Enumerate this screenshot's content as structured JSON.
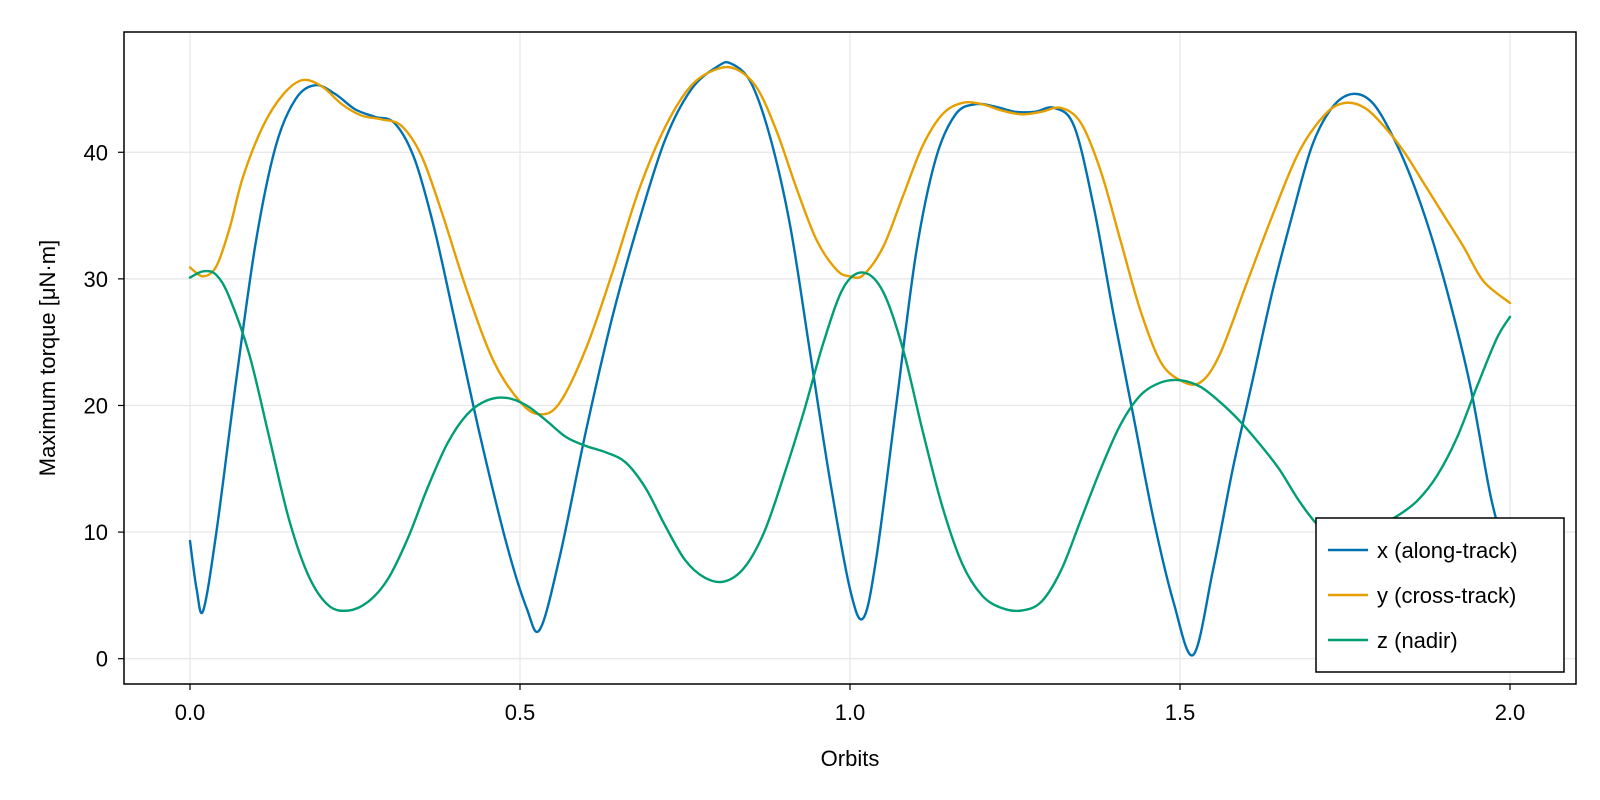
{
  "chart_data": {
    "type": "line",
    "title": "",
    "xlabel": "Orbits",
    "ylabel": "Maximum torque [μN·m]",
    "xlim": [
      -0.1,
      2.1
    ],
    "ylim": [
      -2,
      49.5
    ],
    "xticks": [
      0.0,
      0.5,
      1.0,
      1.5,
      2.0
    ],
    "xtick_labels": [
      "0.0",
      "0.5",
      "1.0",
      "1.5",
      "2.0"
    ],
    "yticks": [
      0,
      10,
      20,
      30,
      40
    ],
    "ytick_labels": [
      "0",
      "10",
      "20",
      "30",
      "40"
    ],
    "grid": true,
    "legend_position": "bottom-right",
    "series": [
      {
        "name": "x (along-track)",
        "color": "#0072B2",
        "points": [
          [
            0.0,
            9.3
          ],
          [
            0.01,
            5.5
          ],
          [
            0.02,
            3.8
          ],
          [
            0.04,
            10
          ],
          [
            0.07,
            22
          ],
          [
            0.1,
            33
          ],
          [
            0.13,
            40.5
          ],
          [
            0.16,
            44.2
          ],
          [
            0.19,
            45.3
          ],
          [
            0.22,
            44.6
          ],
          [
            0.25,
            43.4
          ],
          [
            0.28,
            42.8
          ],
          [
            0.31,
            42.3
          ],
          [
            0.34,
            39.5
          ],
          [
            0.37,
            34
          ],
          [
            0.4,
            27
          ],
          [
            0.44,
            17.5
          ],
          [
            0.48,
            9
          ],
          [
            0.51,
            4
          ],
          [
            0.53,
            2.3
          ],
          [
            0.56,
            8
          ],
          [
            0.6,
            18
          ],
          [
            0.64,
            27
          ],
          [
            0.68,
            34.5
          ],
          [
            0.72,
            41
          ],
          [
            0.76,
            45
          ],
          [
            0.8,
            46.8
          ],
          [
            0.82,
            47
          ],
          [
            0.85,
            45.5
          ],
          [
            0.88,
            41
          ],
          [
            0.91,
            34
          ],
          [
            0.94,
            24
          ],
          [
            0.97,
            14
          ],
          [
            1.0,
            5.5
          ],
          [
            1.02,
            3.2
          ],
          [
            1.04,
            8
          ],
          [
            1.07,
            20
          ],
          [
            1.1,
            32
          ],
          [
            1.13,
            39.5
          ],
          [
            1.16,
            43
          ],
          [
            1.19,
            43.8
          ],
          [
            1.22,
            43.6
          ],
          [
            1.25,
            43.2
          ],
          [
            1.28,
            43.2
          ],
          [
            1.31,
            43.5
          ],
          [
            1.34,
            42
          ],
          [
            1.37,
            35.5
          ],
          [
            1.4,
            27
          ],
          [
            1.43,
            19
          ],
          [
            1.46,
            11
          ],
          [
            1.49,
            4.5
          ],
          [
            1.52,
            0.3
          ],
          [
            1.55,
            7
          ],
          [
            1.58,
            15
          ],
          [
            1.61,
            22
          ],
          [
            1.64,
            29
          ],
          [
            1.67,
            35
          ],
          [
            1.7,
            40.5
          ],
          [
            1.73,
            43.5
          ],
          [
            1.76,
            44.6
          ],
          [
            1.79,
            44
          ],
          [
            1.82,
            41.5
          ],
          [
            1.85,
            38
          ],
          [
            1.88,
            33.5
          ],
          [
            1.91,
            28
          ],
          [
            1.94,
            21.5
          ],
          [
            1.97,
            13
          ],
          [
            1.99,
            9
          ]
        ]
      },
      {
        "name": "y (cross-track)",
        "color": "#E69F00",
        "points": [
          [
            0.0,
            30.9
          ],
          [
            0.02,
            30.2
          ],
          [
            0.04,
            31
          ],
          [
            0.06,
            34
          ],
          [
            0.08,
            38
          ],
          [
            0.11,
            42
          ],
          [
            0.14,
            44.5
          ],
          [
            0.17,
            45.7
          ],
          [
            0.2,
            45.2
          ],
          [
            0.23,
            43.8
          ],
          [
            0.26,
            42.9
          ],
          [
            0.29,
            42.6
          ],
          [
            0.32,
            42.1
          ],
          [
            0.35,
            39.8
          ],
          [
            0.38,
            35.5
          ],
          [
            0.42,
            29
          ],
          [
            0.46,
            23.5
          ],
          [
            0.5,
            20.3
          ],
          [
            0.53,
            19.3
          ],
          [
            0.56,
            20.2
          ],
          [
            0.6,
            24.5
          ],
          [
            0.64,
            30.5
          ],
          [
            0.68,
            37
          ],
          [
            0.72,
            42
          ],
          [
            0.76,
            45.3
          ],
          [
            0.8,
            46.6
          ],
          [
            0.83,
            46.5
          ],
          [
            0.86,
            45
          ],
          [
            0.89,
            41.5
          ],
          [
            0.92,
            37
          ],
          [
            0.95,
            33
          ],
          [
            0.98,
            30.7
          ],
          [
            1.0,
            30.2
          ],
          [
            1.02,
            30.3
          ],
          [
            1.05,
            32.5
          ],
          [
            1.08,
            36.5
          ],
          [
            1.11,
            40.5
          ],
          [
            1.14,
            43
          ],
          [
            1.17,
            43.9
          ],
          [
            1.2,
            43.8
          ],
          [
            1.23,
            43.3
          ],
          [
            1.26,
            43
          ],
          [
            1.29,
            43.2
          ],
          [
            1.32,
            43.5
          ],
          [
            1.35,
            42.3
          ],
          [
            1.38,
            38.5
          ],
          [
            1.41,
            33
          ],
          [
            1.44,
            27.5
          ],
          [
            1.47,
            23.5
          ],
          [
            1.5,
            22
          ],
          [
            1.53,
            21.8
          ],
          [
            1.56,
            24
          ],
          [
            1.6,
            29.5
          ],
          [
            1.64,
            35
          ],
          [
            1.68,
            40
          ],
          [
            1.72,
            43
          ],
          [
            1.75,
            43.9
          ],
          [
            1.78,
            43.5
          ],
          [
            1.81,
            42
          ],
          [
            1.84,
            40
          ],
          [
            1.87,
            37.5
          ],
          [
            1.9,
            35
          ],
          [
            1.93,
            32.5
          ],
          [
            1.96,
            29.8
          ],
          [
            2.0,
            28.1
          ]
        ]
      },
      {
        "name": "z (nadir)",
        "color": "#009E73",
        "points": [
          [
            0.0,
            30.1
          ],
          [
            0.02,
            30.6
          ],
          [
            0.04,
            30.3
          ],
          [
            0.06,
            28.5
          ],
          [
            0.09,
            24
          ],
          [
            0.12,
            17.5
          ],
          [
            0.15,
            11
          ],
          [
            0.18,
            6.5
          ],
          [
            0.21,
            4.2
          ],
          [
            0.24,
            3.8
          ],
          [
            0.27,
            4.5
          ],
          [
            0.3,
            6.3
          ],
          [
            0.33,
            9.5
          ],
          [
            0.36,
            13.5
          ],
          [
            0.39,
            17
          ],
          [
            0.42,
            19.3
          ],
          [
            0.45,
            20.4
          ],
          [
            0.48,
            20.6
          ],
          [
            0.51,
            20
          ],
          [
            0.54,
            18.8
          ],
          [
            0.57,
            17.5
          ],
          [
            0.6,
            16.8
          ],
          [
            0.63,
            16.3
          ],
          [
            0.66,
            15.5
          ],
          [
            0.69,
            13.5
          ],
          [
            0.72,
            10.5
          ],
          [
            0.75,
            7.8
          ],
          [
            0.78,
            6.4
          ],
          [
            0.81,
            6.1
          ],
          [
            0.84,
            7.2
          ],
          [
            0.87,
            10
          ],
          [
            0.9,
            14.5
          ],
          [
            0.93,
            19.5
          ],
          [
            0.96,
            25
          ],
          [
            0.99,
            29.3
          ],
          [
            1.02,
            30.5
          ],
          [
            1.05,
            29
          ],
          [
            1.08,
            24.5
          ],
          [
            1.11,
            18
          ],
          [
            1.14,
            12
          ],
          [
            1.17,
            7.5
          ],
          [
            1.2,
            5
          ],
          [
            1.23,
            4
          ],
          [
            1.26,
            3.8
          ],
          [
            1.29,
            4.5
          ],
          [
            1.32,
            7
          ],
          [
            1.35,
            11
          ],
          [
            1.38,
            15
          ],
          [
            1.41,
            18.5
          ],
          [
            1.44,
            20.8
          ],
          [
            1.47,
            21.8
          ],
          [
            1.5,
            22
          ],
          [
            1.53,
            21.5
          ],
          [
            1.56,
            20.3
          ],
          [
            1.59,
            18.8
          ],
          [
            1.62,
            17
          ],
          [
            1.65,
            15
          ],
          [
            1.68,
            12.5
          ],
          [
            1.71,
            10.5
          ],
          [
            1.74,
            9.7
          ],
          [
            1.77,
            9.8
          ],
          [
            1.8,
            10.5
          ],
          [
            1.83,
            11.3
          ],
          [
            1.86,
            12.5
          ],
          [
            1.89,
            14.5
          ],
          [
            1.92,
            17.5
          ],
          [
            1.95,
            21.5
          ],
          [
            1.98,
            25.3
          ],
          [
            2.0,
            27
          ]
        ]
      }
    ]
  }
}
